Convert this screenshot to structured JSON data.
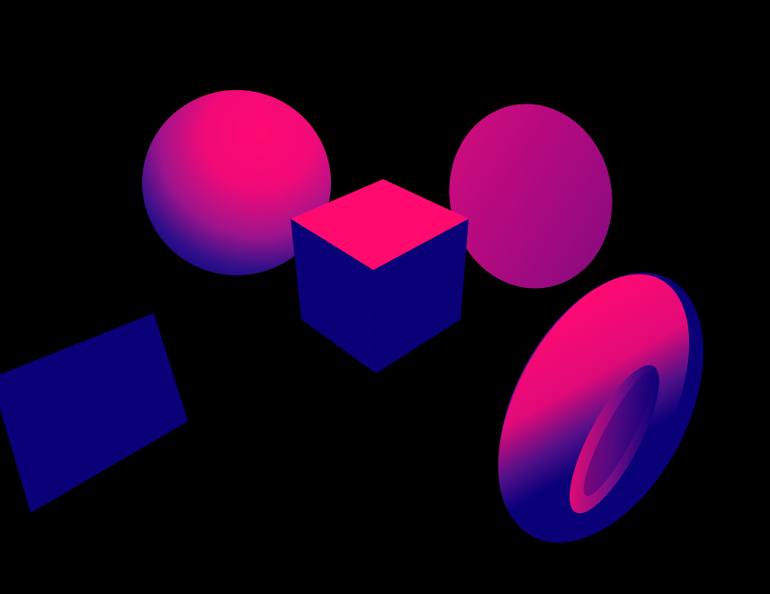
{
  "scene": {
    "background": "#000000",
    "light_color": "#ff0a6e",
    "shadow_color": "#0a0078",
    "objects": [
      {
        "name": "sphere-left",
        "shape": "sphere"
      },
      {
        "name": "cube-center",
        "shape": "cube"
      },
      {
        "name": "ellipsoid-right",
        "shape": "ellipsoid"
      },
      {
        "name": "plane-left",
        "shape": "plane"
      },
      {
        "name": "torus-right",
        "shape": "torus"
      }
    ]
  }
}
